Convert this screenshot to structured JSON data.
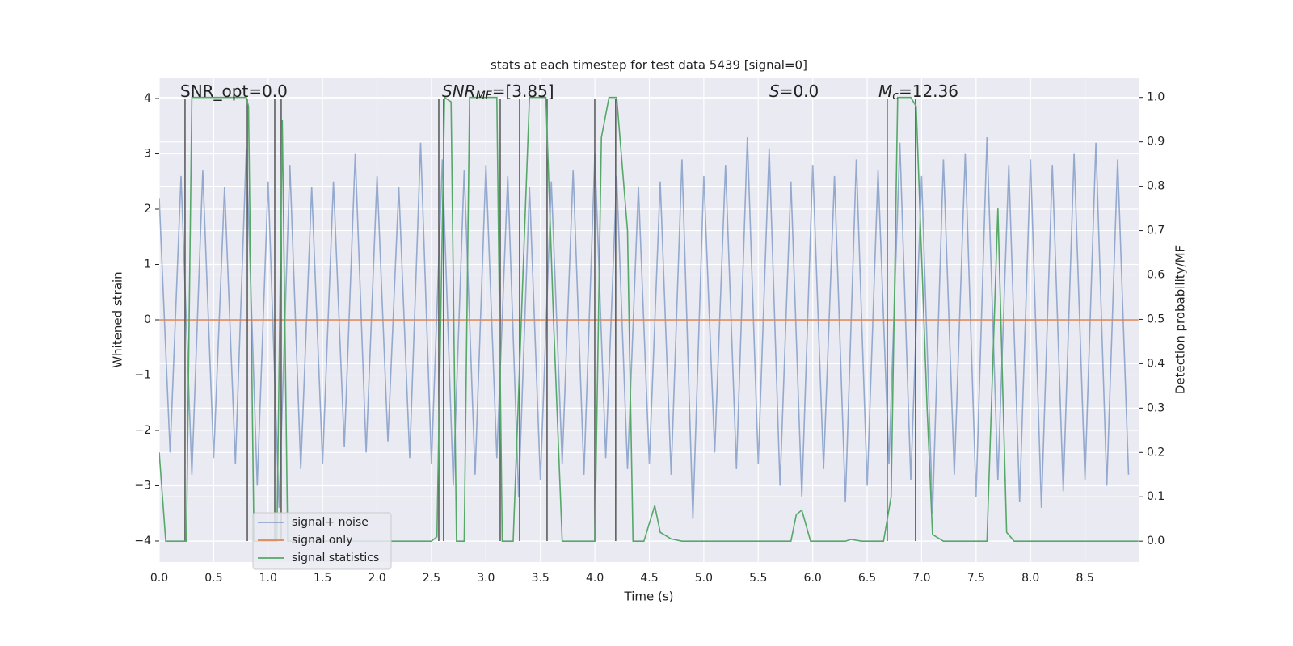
{
  "chart_data": {
    "type": "line",
    "title": "stats at each timestep for test data 5439 [signal=0]",
    "x_label": "Time (s)",
    "y_label": "Whitened strain",
    "y2_label": "Detection probability/MF",
    "xlim": [
      0,
      9.0
    ],
    "ylim": [
      -4.38,
      4.38
    ],
    "y2lim": [
      -0.047,
      1.045
    ],
    "xticks": [
      {
        "value": 0,
        "label": "0.0"
      },
      {
        "value": 0.5,
        "label": "0.5"
      },
      {
        "value": 1,
        "label": "1.0"
      },
      {
        "value": 1.5,
        "label": "1.5"
      },
      {
        "value": 2,
        "label": "2.0"
      },
      {
        "value": 2.5,
        "label": "2.5"
      },
      {
        "value": 3,
        "label": "3.0"
      },
      {
        "value": 3.5,
        "label": "3.5"
      },
      {
        "value": 4,
        "label": "4.0"
      },
      {
        "value": 4.5,
        "label": "4.5"
      },
      {
        "value": 5,
        "label": "5.0"
      },
      {
        "value": 5.5,
        "label": "5.5"
      },
      {
        "value": 6,
        "label": "6.0"
      },
      {
        "value": 6.5,
        "label": "6.5"
      },
      {
        "value": 7,
        "label": "7.0"
      },
      {
        "value": 7.5,
        "label": "7.5"
      },
      {
        "value": 8,
        "label": "8.0"
      },
      {
        "value": 8.5,
        "label": "8.5"
      }
    ],
    "yticks": [
      {
        "value": -4,
        "label": "−4"
      },
      {
        "value": -3,
        "label": "−3"
      },
      {
        "value": -2,
        "label": "−2"
      },
      {
        "value": -1,
        "label": "−1"
      },
      0,
      1,
      2,
      3,
      4
    ],
    "y2ticks": [
      {
        "value": 0,
        "label": "0.0"
      },
      {
        "value": 0.1,
        "label": "0.1"
      },
      {
        "value": 0.2,
        "label": "0.2"
      },
      {
        "value": 0.3,
        "label": "0.3"
      },
      {
        "value": 0.4,
        "label": "0.4"
      },
      {
        "value": 0.5,
        "label": "0.5"
      },
      {
        "value": 0.6,
        "label": "0.6"
      },
      {
        "value": 0.7,
        "label": "0.7"
      },
      {
        "value": 0.8,
        "label": "0.8"
      },
      {
        "value": 0.9,
        "label": "0.9"
      },
      {
        "value": 1,
        "label": "1.0"
      }
    ],
    "grid": true,
    "legend": "lower left",
    "annotations": [
      {
        "text": "SNR_opt=0.0"
      },
      {
        "text": "SNR",
        "sub": "MF",
        "rest": "=[3.85]"
      },
      {
        "text": "S",
        "rest": "=0.0"
      },
      {
        "text": "M",
        "sub": "c",
        "rest": "=12.36"
      }
    ],
    "series": [
      {
        "name": "signal+ noise",
        "color": "#4c72b0",
        "x": [
          0.0,
          0.1,
          0.2,
          0.3,
          0.4,
          0.5,
          0.6,
          0.7,
          0.8,
          0.9,
          1.0,
          1.1,
          1.2,
          1.3,
          1.4,
          1.5,
          1.6,
          1.7,
          1.8,
          1.9,
          2.0,
          2.1,
          2.2,
          2.3,
          2.4,
          2.5,
          2.6,
          2.7,
          2.8,
          2.9,
          3.0,
          3.1,
          3.2,
          3.3,
          3.4,
          3.5,
          3.6,
          3.7,
          3.8,
          3.9,
          4.0,
          4.1,
          4.2,
          4.3,
          4.4,
          4.5,
          4.6,
          4.7,
          4.8,
          4.9,
          5.0,
          5.1,
          5.2,
          5.3,
          5.4,
          5.5,
          5.6,
          5.7,
          5.8,
          5.9,
          6.0,
          6.1,
          6.2,
          6.3,
          6.4,
          6.5,
          6.6,
          6.7,
          6.8,
          6.9,
          7.0,
          7.1,
          7.2,
          7.3,
          7.4,
          7.5,
          7.6,
          7.7,
          7.8,
          7.9,
          8.0,
          8.1,
          8.2,
          8.3,
          8.4,
          8.5,
          8.6,
          8.7,
          8.8,
          8.9
        ],
        "values": [
          2.2,
          -2.4,
          2.6,
          -2.8,
          2.7,
          -2.5,
          2.4,
          -2.6,
          3.1,
          -3.0,
          2.5,
          -3.4,
          2.8,
          -2.7,
          2.4,
          -2.6,
          2.5,
          -2.3,
          3.0,
          -2.4,
          2.6,
          -2.2,
          2.4,
          -2.5,
          3.2,
          -2.6,
          2.9,
          -3.0,
          2.7,
          -2.8,
          2.8,
          -2.5,
          2.6,
          -3.2,
          2.4,
          -2.9,
          2.5,
          -2.6,
          2.7,
          -2.8,
          3.0,
          -2.5,
          2.6,
          -2.7,
          2.4,
          -2.6,
          2.5,
          -2.8,
          2.9,
          -3.6,
          2.6,
          -2.4,
          2.8,
          -2.7,
          3.3,
          -2.6,
          3.1,
          -3.0,
          2.5,
          -3.2,
          2.8,
          -2.7,
          2.6,
          -3.3,
          2.9,
          -3.0,
          2.7,
          -2.6,
          3.2,
          -2.9,
          2.6,
          -3.5,
          2.9,
          -2.8,
          3.0,
          -3.2,
          3.3,
          -2.9,
          2.8,
          -3.3,
          2.9,
          -3.4,
          2.8,
          -3.1,
          3.0,
          -2.9,
          3.2,
          -3.0,
          2.9,
          -2.8
        ]
      },
      {
        "name": "signal only",
        "color": "#dd8452",
        "x": [
          0.0,
          8.99
        ],
        "values": [
          0,
          0
        ]
      },
      {
        "name": "signal statistics",
        "color": "#55a868",
        "axis": "y2",
        "x": [
          0,
          0.06,
          0.25,
          0.3,
          0.8,
          0.82,
          0.87,
          1.08,
          1.13,
          1.18,
          2.5,
          2.55,
          2.62,
          2.68,
          2.73,
          2.8,
          2.85,
          3.1,
          3.15,
          3.25,
          3.4,
          3.55,
          3.62,
          3.7,
          3.8,
          4.0,
          4.06,
          4.13,
          4.2,
          4.3,
          4.35,
          4.45,
          4.5,
          4.55,
          4.6,
          4.7,
          4.8,
          5.0,
          5.5,
          5.8,
          5.85,
          5.9,
          5.98,
          6.3,
          6.35,
          6.45,
          6.65,
          6.72,
          6.78,
          6.9,
          6.95,
          7.05,
          7.1,
          7.2,
          7.6,
          7.7,
          7.78,
          7.85,
          8.99
        ],
        "values": [
          0.2,
          0,
          0,
          1.0,
          1.0,
          0.98,
          0,
          0,
          0.95,
          0,
          0,
          0.01,
          1.0,
          0.99,
          0,
          0,
          1.0,
          1.0,
          0,
          0,
          1.0,
          1.0,
          0.5,
          0,
          0,
          0,
          0.91,
          1.0,
          1.0,
          0.7,
          0,
          0,
          0.04,
          0.08,
          0.02,
          0.005,
          0,
          0,
          0,
          0,
          0.06,
          0.07,
          0,
          0,
          0.004,
          0,
          0,
          0.1,
          1.0,
          1.0,
          0.98,
          0.3,
          0.015,
          0,
          0,
          0.75,
          0.02,
          0,
          0
        ]
      }
    ],
    "vlines": {
      "x": [
        0.237,
        0.809,
        1.061,
        1.12,
        2.567,
        2.611,
        3.131,
        3.309,
        3.561,
        3.999,
        4.191,
        6.684,
        6.944
      ],
      "ymin": -4,
      "ymax": 4,
      "color": "#555555"
    }
  }
}
